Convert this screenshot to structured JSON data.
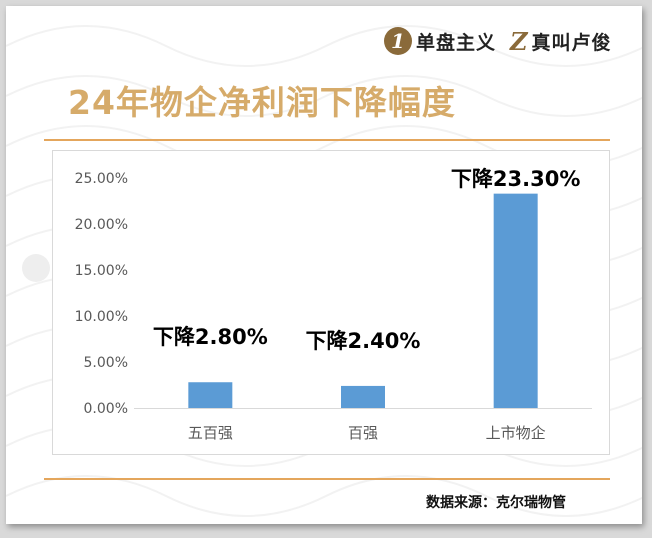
{
  "brand": {
    "logo1_mark": "1",
    "logo1_text": "单盘主义",
    "logo2_mark": "Z",
    "logo2_text": "真叫卢俊"
  },
  "colors": {
    "accent": "#e4a65c",
    "title": "#d6ab6a",
    "bar": "#5b9bd5"
  },
  "source": "数据来源：克尔瑞物管",
  "chart_data": {
    "type": "bar",
    "title": "24年物企净利润下降幅度",
    "categories": [
      "五百强",
      "百强",
      "上市物企"
    ],
    "values": [
      2.8,
      2.4,
      23.3
    ],
    "data_labels": [
      "下降2.80%",
      "下降2.40%",
      "下降23.30%"
    ],
    "yticks": [
      "0.00%",
      "5.00%",
      "10.00%",
      "15.00%",
      "20.00%",
      "25.00%"
    ],
    "ylim": [
      0,
      25
    ],
    "xlabel": "",
    "ylabel": "",
    "grid": false,
    "legend": "none"
  }
}
